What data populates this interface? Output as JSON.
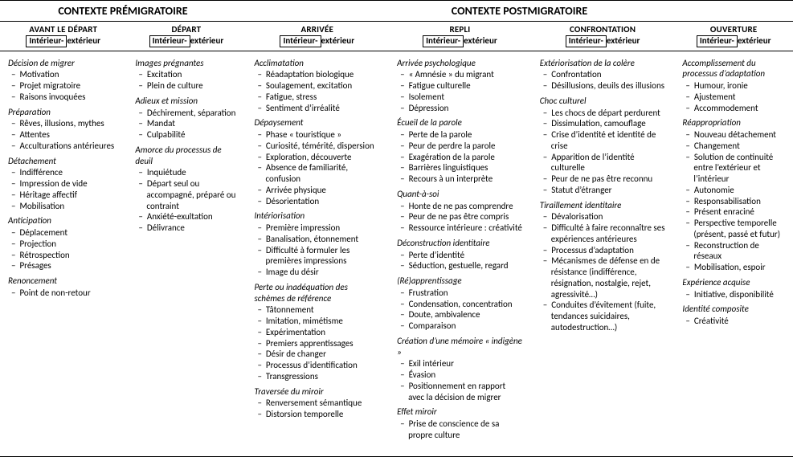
{
  "contexts": {
    "pre": {
      "title": "CONTEXTE PRÉMIGRATOIRE"
    },
    "post": {
      "title": "CONTEXTE POSTMIGRATOIRE"
    }
  },
  "subheader": {
    "int": "Intérieur-",
    "ext": "extérieur"
  },
  "columns": [
    {
      "title": "AVANT LE DÉPART",
      "sections": [
        {
          "heading": "Décision de migrer",
          "items": [
            "Motivation",
            "Projet migratoire",
            "Raisons invoquées"
          ]
        },
        {
          "heading": "Préparation",
          "items": [
            "Rêves, illusions, mythes",
            "Attentes",
            "Acculturations antérieures"
          ]
        },
        {
          "heading": "Détachement",
          "items": [
            "Indifférence",
            "Impression de vide",
            "Héritage affectif",
            "Mobilisation"
          ]
        },
        {
          "heading": "Anticipation",
          "items": [
            "Déplacement",
            "Projection",
            "Rétrospection",
            "Présages"
          ]
        },
        {
          "heading": "Renoncement",
          "items": [
            "Point de non-retour"
          ]
        }
      ]
    },
    {
      "title": "DÉPART",
      "sections": [
        {
          "heading": "Images prégnantes",
          "items": [
            "Excitation",
            "Plein de culture"
          ]
        },
        {
          "heading": "Adieux et mission",
          "items": [
            "Déchirement, séparation",
            "Mandat",
            "Culpabilité"
          ]
        },
        {
          "heading": "Amorce du processus de deuil",
          "items": [
            "Inquiétude",
            "Départ seul ou accompagné, préparé ou contraint",
            "Anxiété-exultation",
            "Délivrance"
          ]
        }
      ]
    },
    {
      "title": "ARRIVÉE",
      "sections": [
        {
          "heading": "Acclimatation",
          "items": [
            "Réadaptation biologique",
            "Soulagement, excitation",
            "Fatigue, stress",
            "Sentiment d’irréalité"
          ]
        },
        {
          "heading": "Dépaysement",
          "items": [
            "Phase « touristique »",
            "Curiosité, témérité, dispersion",
            "Exploration, découverte",
            "Absence de familiarité, confusion",
            "Arrivée physique",
            "Désorientation"
          ]
        },
        {
          "heading": "Intériorisation",
          "items": [
            "Première impression",
            "Banalisation, étonnement",
            "Difficulté à formuler les premières impressions",
            "Image du désir"
          ]
        },
        {
          "heading": "Perte ou inadéquation des schèmes de référence",
          "items": [
            "Tâtonnement",
            "Imitation, mimétisme",
            "Expérimentation",
            "Premiers apprentissages",
            "Désir de changer",
            "Processus d’identification",
            "Transgressions"
          ]
        },
        {
          "heading": "Traversée du miroir",
          "items": [
            "Renversement sémantique",
            "Distorsion temporelle"
          ]
        }
      ]
    },
    {
      "title": "REPLI",
      "sections": [
        {
          "heading": "Arrivée psychologique",
          "items": [
            "« Amnésie » du migrant",
            "Fatigue culturelle",
            "Isolement",
            "Dépression"
          ]
        },
        {
          "heading": "Écueil de la parole",
          "items": [
            "Perte de la parole",
            "Peur de perdre la parole",
            "Exagération de la parole",
            "Barrières linguistiques",
            "Recours à un interprète"
          ]
        },
        {
          "heading": "Quant-à-soi",
          "items": [
            "Honte de ne pas comprendre",
            "Peur de ne pas être compris",
            "Ressource intérieure : créativité"
          ]
        },
        {
          "heading": "Déconstruction identitaire",
          "items": [
            "Perte d’identité",
            "Séduction, gestuelle, regard"
          ]
        },
        {
          "heading": "(Ré)apprentissage",
          "items": [
            "Frustration",
            "Condensation, concentration",
            "Doute, ambivalence",
            "Comparaison"
          ]
        },
        {
          "heading": "Création d’une mémoire « indigène »",
          "items": [
            "Exil intérieur",
            "Évasion",
            "Positionnement en rapport avec la décision de migrer"
          ]
        },
        {
          "heading": "Effet miroir",
          "items": [
            "Prise de conscience de sa propre culture"
          ]
        }
      ]
    },
    {
      "title": "CONFRONTATION",
      "sections": [
        {
          "heading": "Extériorisation de la colère",
          "items": [
            "Confrontation",
            "Désillusions, deuils des illusions"
          ]
        },
        {
          "heading": "Choc culturel",
          "items": [
            "Les chocs de départ perdurent",
            "Dissimulation, camouflage",
            "Crise d’identité et identité de crise",
            "Apparition de l’identité culturelle",
            "Peur de ne pas être reconnu",
            "Statut d’étranger"
          ]
        },
        {
          "heading": "Tiraillement identitaire",
          "items": [
            "Dévalorisation",
            "Difficulté à faire reconnaître ses expériences antérieures",
            "Processus d’adaptation",
            "Mécanismes de défense en de résistance (indifférence, résignation, nostalgie, rejet, agressivité…)",
            "Conduites d’évitement (fuite, tendances suicidaires, autodestruction…)"
          ]
        }
      ]
    },
    {
      "title": "OUVERTURE",
      "sections": [
        {
          "heading": "Accomplissement du processus d’adaptation",
          "items": [
            "Humour, ironie",
            "Ajustement",
            "Accommodement"
          ]
        },
        {
          "heading": "Réappropriation",
          "items": [
            "Nouveau détachement",
            "Changement",
            "Solution de continuité entre l’extérieur et l’intérieur",
            "Autonomie",
            "Responsabilisation",
            "Présent enraciné",
            "Perspective temporelle (présent, passé et futur)",
            "Reconstruction de réseaux",
            "Mobilisation, espoir"
          ]
        },
        {
          "heading": "Expérience acquise",
          "items": [
            "Initiative, disponibilité"
          ]
        },
        {
          "heading": "Identité composite",
          "items": [
            "Créativité"
          ]
        }
      ]
    }
  ]
}
